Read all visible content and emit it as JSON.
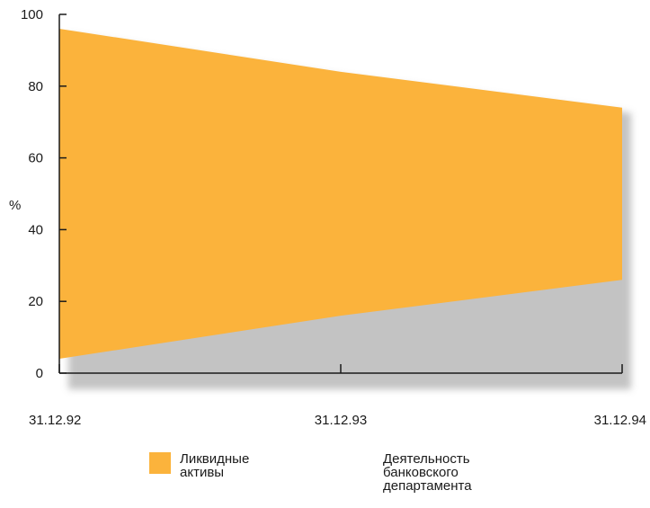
{
  "chart_data": {
    "type": "area",
    "title": "",
    "xlabel": "",
    "ylabel": "%",
    "ylim": [
      0,
      100
    ],
    "yticks": [
      "0",
      "20",
      "40",
      "60",
      "80",
      "100"
    ],
    "x": [
      "31.12.92",
      "31.12.93",
      "31.12.94"
    ],
    "series": [
      {
        "name": "Ликвидные активы",
        "lower": [
          4,
          16,
          26
        ],
        "upper": [
          96,
          84,
          74
        ],
        "color": "#fbb33c"
      },
      {
        "name": "Деятельность банковского департамента",
        "lower": [
          0,
          0,
          0
        ],
        "upper": [
          4,
          16,
          26
        ],
        "color": "#ffffff"
      }
    ],
    "grid": false,
    "legend": "bottom"
  },
  "colors": {
    "shadow": "#bdbdbd",
    "axis": "#1a1a1a"
  }
}
